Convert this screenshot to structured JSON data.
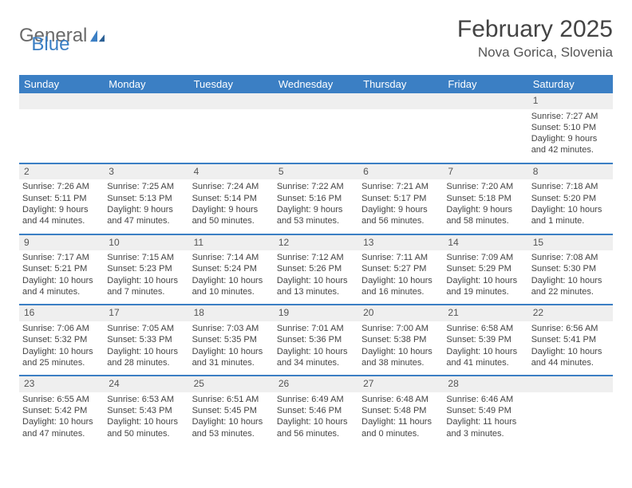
{
  "logo": {
    "text1": "General",
    "text2": "Blue"
  },
  "title": "February 2025",
  "location": "Nova Gorica, Slovenia",
  "colors": {
    "header_bg": "#3b7fc4",
    "header_text": "#ffffff",
    "daynum_bg": "#efefef",
    "row_border": "#3b7fc4",
    "text": "#444444",
    "logo_gray": "#6a6a6a",
    "logo_blue": "#3b7fc4",
    "background": "#ffffff"
  },
  "typography": {
    "title_fontsize": 30,
    "location_fontsize": 17,
    "header_fontsize": 13,
    "cell_fontsize": 11,
    "daynum_fontsize": 12
  },
  "weekdays": [
    "Sunday",
    "Monday",
    "Tuesday",
    "Wednesday",
    "Thursday",
    "Friday",
    "Saturday"
  ],
  "weeks": [
    [
      null,
      null,
      null,
      null,
      null,
      null,
      {
        "day": "1",
        "sunrise": "Sunrise: 7:27 AM",
        "sunset": "Sunset: 5:10 PM",
        "daylight": "Daylight: 9 hours and 42 minutes."
      }
    ],
    [
      {
        "day": "2",
        "sunrise": "Sunrise: 7:26 AM",
        "sunset": "Sunset: 5:11 PM",
        "daylight": "Daylight: 9 hours and 44 minutes."
      },
      {
        "day": "3",
        "sunrise": "Sunrise: 7:25 AM",
        "sunset": "Sunset: 5:13 PM",
        "daylight": "Daylight: 9 hours and 47 minutes."
      },
      {
        "day": "4",
        "sunrise": "Sunrise: 7:24 AM",
        "sunset": "Sunset: 5:14 PM",
        "daylight": "Daylight: 9 hours and 50 minutes."
      },
      {
        "day": "5",
        "sunrise": "Sunrise: 7:22 AM",
        "sunset": "Sunset: 5:16 PM",
        "daylight": "Daylight: 9 hours and 53 minutes."
      },
      {
        "day": "6",
        "sunrise": "Sunrise: 7:21 AM",
        "sunset": "Sunset: 5:17 PM",
        "daylight": "Daylight: 9 hours and 56 minutes."
      },
      {
        "day": "7",
        "sunrise": "Sunrise: 7:20 AM",
        "sunset": "Sunset: 5:18 PM",
        "daylight": "Daylight: 9 hours and 58 minutes."
      },
      {
        "day": "8",
        "sunrise": "Sunrise: 7:18 AM",
        "sunset": "Sunset: 5:20 PM",
        "daylight": "Daylight: 10 hours and 1 minute."
      }
    ],
    [
      {
        "day": "9",
        "sunrise": "Sunrise: 7:17 AM",
        "sunset": "Sunset: 5:21 PM",
        "daylight": "Daylight: 10 hours and 4 minutes."
      },
      {
        "day": "10",
        "sunrise": "Sunrise: 7:15 AM",
        "sunset": "Sunset: 5:23 PM",
        "daylight": "Daylight: 10 hours and 7 minutes."
      },
      {
        "day": "11",
        "sunrise": "Sunrise: 7:14 AM",
        "sunset": "Sunset: 5:24 PM",
        "daylight": "Daylight: 10 hours and 10 minutes."
      },
      {
        "day": "12",
        "sunrise": "Sunrise: 7:12 AM",
        "sunset": "Sunset: 5:26 PM",
        "daylight": "Daylight: 10 hours and 13 minutes."
      },
      {
        "day": "13",
        "sunrise": "Sunrise: 7:11 AM",
        "sunset": "Sunset: 5:27 PM",
        "daylight": "Daylight: 10 hours and 16 minutes."
      },
      {
        "day": "14",
        "sunrise": "Sunrise: 7:09 AM",
        "sunset": "Sunset: 5:29 PM",
        "daylight": "Daylight: 10 hours and 19 minutes."
      },
      {
        "day": "15",
        "sunrise": "Sunrise: 7:08 AM",
        "sunset": "Sunset: 5:30 PM",
        "daylight": "Daylight: 10 hours and 22 minutes."
      }
    ],
    [
      {
        "day": "16",
        "sunrise": "Sunrise: 7:06 AM",
        "sunset": "Sunset: 5:32 PM",
        "daylight": "Daylight: 10 hours and 25 minutes."
      },
      {
        "day": "17",
        "sunrise": "Sunrise: 7:05 AM",
        "sunset": "Sunset: 5:33 PM",
        "daylight": "Daylight: 10 hours and 28 minutes."
      },
      {
        "day": "18",
        "sunrise": "Sunrise: 7:03 AM",
        "sunset": "Sunset: 5:35 PM",
        "daylight": "Daylight: 10 hours and 31 minutes."
      },
      {
        "day": "19",
        "sunrise": "Sunrise: 7:01 AM",
        "sunset": "Sunset: 5:36 PM",
        "daylight": "Daylight: 10 hours and 34 minutes."
      },
      {
        "day": "20",
        "sunrise": "Sunrise: 7:00 AM",
        "sunset": "Sunset: 5:38 PM",
        "daylight": "Daylight: 10 hours and 38 minutes."
      },
      {
        "day": "21",
        "sunrise": "Sunrise: 6:58 AM",
        "sunset": "Sunset: 5:39 PM",
        "daylight": "Daylight: 10 hours and 41 minutes."
      },
      {
        "day": "22",
        "sunrise": "Sunrise: 6:56 AM",
        "sunset": "Sunset: 5:41 PM",
        "daylight": "Daylight: 10 hours and 44 minutes."
      }
    ],
    [
      {
        "day": "23",
        "sunrise": "Sunrise: 6:55 AM",
        "sunset": "Sunset: 5:42 PM",
        "daylight": "Daylight: 10 hours and 47 minutes."
      },
      {
        "day": "24",
        "sunrise": "Sunrise: 6:53 AM",
        "sunset": "Sunset: 5:43 PM",
        "daylight": "Daylight: 10 hours and 50 minutes."
      },
      {
        "day": "25",
        "sunrise": "Sunrise: 6:51 AM",
        "sunset": "Sunset: 5:45 PM",
        "daylight": "Daylight: 10 hours and 53 minutes."
      },
      {
        "day": "26",
        "sunrise": "Sunrise: 6:49 AM",
        "sunset": "Sunset: 5:46 PM",
        "daylight": "Daylight: 10 hours and 56 minutes."
      },
      {
        "day": "27",
        "sunrise": "Sunrise: 6:48 AM",
        "sunset": "Sunset: 5:48 PM",
        "daylight": "Daylight: 11 hours and 0 minutes."
      },
      {
        "day": "28",
        "sunrise": "Sunrise: 6:46 AM",
        "sunset": "Sunset: 5:49 PM",
        "daylight": "Daylight: 11 hours and 3 minutes."
      },
      null
    ]
  ]
}
